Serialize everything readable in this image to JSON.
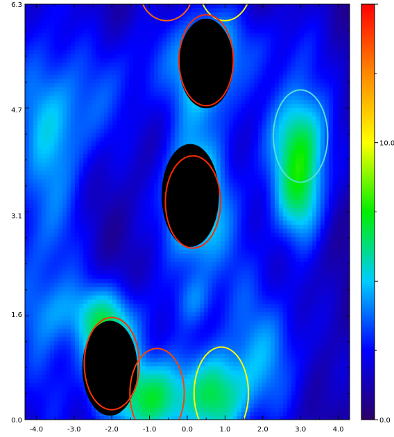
{
  "chart_data": {
    "type": "heatmap",
    "title": "",
    "xlabel": "",
    "ylabel": "",
    "xlim": [
      -4.3,
      4.3
    ],
    "ylim": [
      0.0,
      6.3
    ],
    "x_ticks": [
      -4.0,
      -3.0,
      -2.0,
      -1.0,
      0.0,
      1.0,
      2.0,
      3.0,
      4.0
    ],
    "x_tick_labels": [
      "-4.0",
      "-3.0",
      "-2.0",
      "-1.0",
      "0.0",
      "1.0",
      "2.0",
      "3.0",
      "4.0"
    ],
    "y_ticks": [
      0.0,
      1.6,
      3.1,
      4.7,
      6.3
    ],
    "y_tick_labels": [
      "0.0",
      "1.6",
      "3.1",
      "4.7",
      "6.3"
    ],
    "colorbar": {
      "range": [
        0.0,
        15.0
      ],
      "tick_values": [
        0.0,
        10.0
      ],
      "tick_labels": [
        "0.0",
        "10.0"
      ],
      "colormap": [
        "#2b0066",
        "#0000ff",
        "#00ccff",
        "#00ee00",
        "#ffff00",
        "#ff8800",
        "#ff0000"
      ]
    },
    "blobs": [
      {
        "x": -2.0,
        "y": 0.85,
        "sx": 0.75,
        "sy": 0.85,
        "amp": 5.5
      },
      {
        "x": -0.8,
        "y": 0.3,
        "sx": 0.8,
        "sy": 0.65,
        "amp": 5.5
      },
      {
        "x": 0.8,
        "y": 0.35,
        "sx": 0.85,
        "sy": 0.7,
        "amp": 5.0
      },
      {
        "x": 0.1,
        "y": 3.3,
        "sx": 0.8,
        "sy": 1.0,
        "amp": 5.0
      },
      {
        "x": 0.5,
        "y": 5.4,
        "sx": 0.8,
        "sy": 0.85,
        "amp": 4.5
      },
      {
        "x": 3.0,
        "y": 4.1,
        "sx": 0.75,
        "sy": 1.0,
        "amp": 6.0
      },
      {
        "x": 3.0,
        "y": 3.2,
        "sx": 0.6,
        "sy": 0.6,
        "amp": 2.0
      },
      {
        "x": -3.8,
        "y": 3.2,
        "sx": 1.0,
        "sy": 3.5,
        "amp": 2.5
      },
      {
        "x": -3.0,
        "y": 4.6,
        "sx": 1.2,
        "sy": 0.9,
        "amp": 2.0
      },
      {
        "x": -2.5,
        "y": 1.6,
        "sx": 1.4,
        "sy": 0.5,
        "amp": 2.5
      },
      {
        "x": 2.2,
        "y": 1.0,
        "sx": 1.0,
        "sy": 1.0,
        "amp": 2.5
      },
      {
        "x": 0.2,
        "y": 1.8,
        "sx": 0.5,
        "sy": 0.4,
        "amp": 1.8
      },
      {
        "x": 1.2,
        "y": 2.8,
        "sx": 1.2,
        "sy": 2.0,
        "amp": 1.4
      },
      {
        "x": -1.2,
        "y": 5.3,
        "sx": 1.2,
        "sy": 0.8,
        "amp": 1.6
      },
      {
        "x": 2.2,
        "y": 5.7,
        "sx": 1.4,
        "sy": 0.6,
        "amp": 1.3
      }
    ],
    "black_masks": [
      {
        "x": -2.05,
        "y": 0.78,
        "rx": 0.73,
        "ry": 0.72
      },
      {
        "x": 0.08,
        "y": 3.4,
        "rx": 0.76,
        "ry": 0.78
      },
      {
        "x": 0.5,
        "y": 5.4,
        "rx": 0.72,
        "ry": 0.68
      }
    ],
    "ellipses": [
      {
        "x": -0.55,
        "y": 6.5,
        "rx": 0.7,
        "ry": 0.45,
        "color": "#ff6a00"
      },
      {
        "x": 1.0,
        "y": 6.6,
        "rx": 0.7,
        "ry": 0.55,
        "color": "#ffff00"
      },
      {
        "x": 0.5,
        "y": 5.45,
        "rx": 0.72,
        "ry": 0.69,
        "color": "#ff2a00"
      },
      {
        "x": 3.0,
        "y": 4.3,
        "rx": 0.72,
        "ry": 0.7,
        "color": "#55dddd"
      },
      {
        "x": 0.15,
        "y": 3.3,
        "rx": 0.73,
        "ry": 0.7,
        "color": "#ff2a00"
      },
      {
        "x": -2.0,
        "y": 0.85,
        "rx": 0.73,
        "ry": 0.7,
        "color": "#ff3300"
      },
      {
        "x": -0.8,
        "y": 0.4,
        "rx": 0.72,
        "ry": 0.68,
        "color": "#ff4400"
      },
      {
        "x": 0.9,
        "y": 0.4,
        "rx": 0.72,
        "ry": 0.7,
        "color": "#ffff00"
      }
    ]
  }
}
